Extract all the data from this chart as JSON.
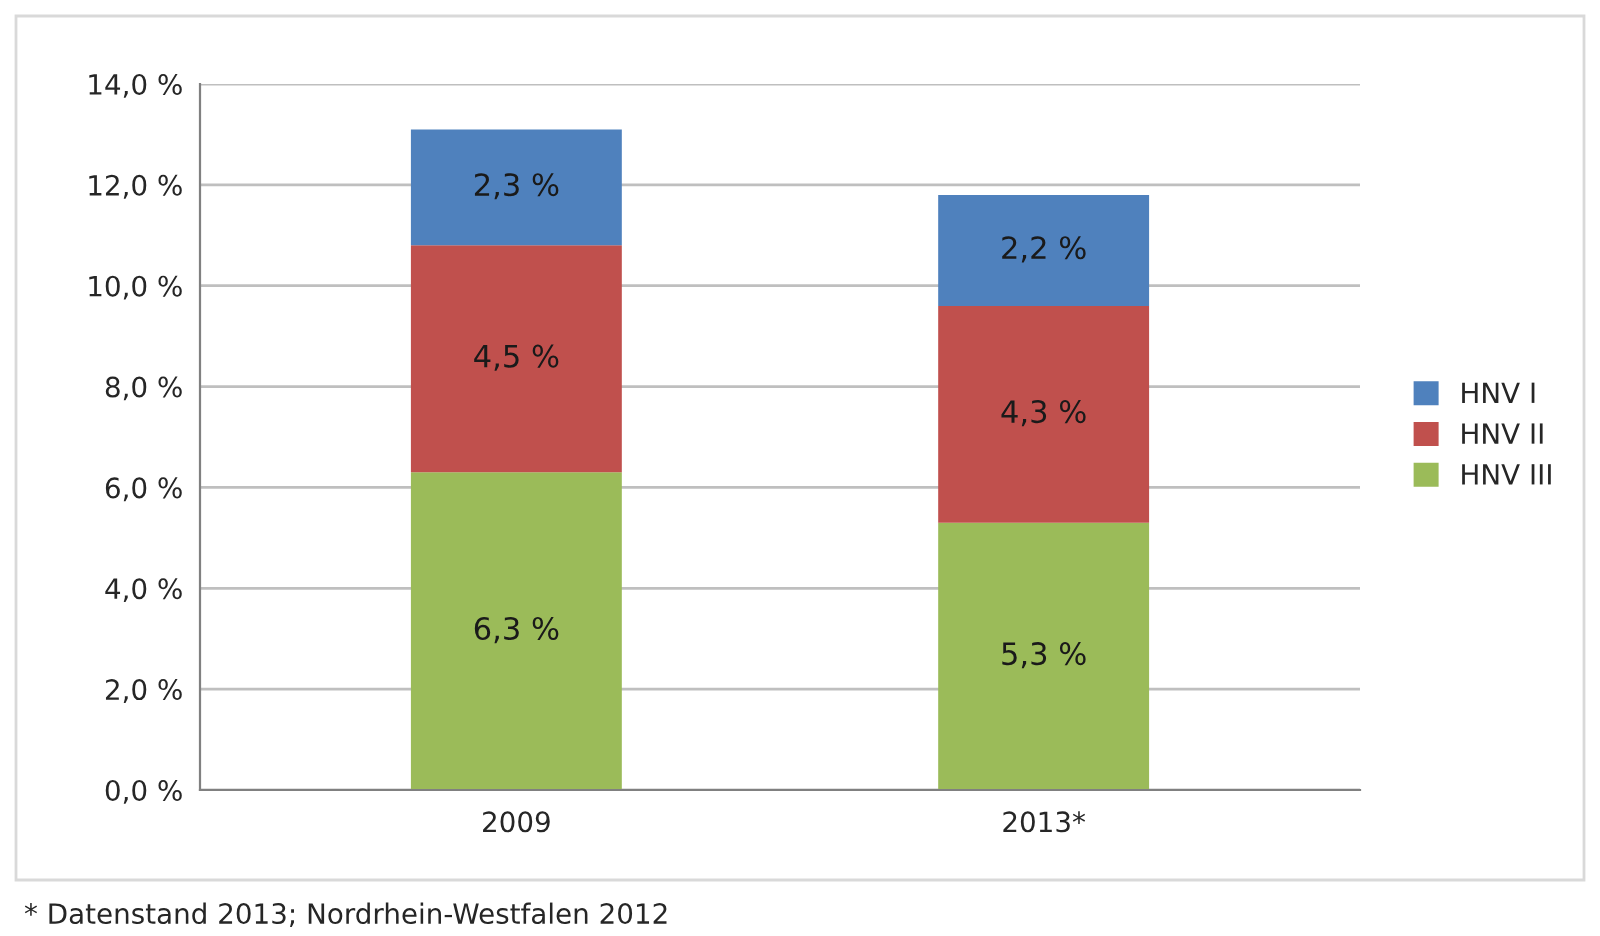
{
  "chart_data": {
    "type": "bar",
    "stacked": true,
    "categories": [
      "2009",
      "2013*"
    ],
    "series": [
      {
        "name": "HNV III",
        "color": "#9bbb59",
        "values": [
          6.3,
          5.3
        ],
        "value_labels": [
          "6,3 %",
          "5,3 %"
        ]
      },
      {
        "name": "HNV II",
        "color": "#c0504d",
        "values": [
          4.5,
          4.3
        ],
        "value_labels": [
          "4,5 %",
          "4,3 %"
        ]
      },
      {
        "name": "HNV I",
        "color": "#4f81bd",
        "values": [
          2.3,
          2.2
        ],
        "value_labels": [
          "2,3 %",
          "2,2 %"
        ]
      }
    ],
    "ylim": [
      0,
      14
    ],
    "yticks": [
      {
        "value": 0,
        "label": "0,0 %"
      },
      {
        "value": 2,
        "label": "2,0 %"
      },
      {
        "value": 4,
        "label": "4,0 %"
      },
      {
        "value": 6,
        "label": "6,0 %"
      },
      {
        "value": 8,
        "label": "8,0 %"
      },
      {
        "value": 10,
        "label": "10,0 %"
      },
      {
        "value": 12,
        "label": "12,0 %"
      },
      {
        "value": 14,
        "label": "14,0 %"
      }
    ],
    "grid": "y",
    "legend": "right",
    "annotations": [
      "* Datenstand 2013; Nordrhein-Westfalen 2012"
    ]
  }
}
